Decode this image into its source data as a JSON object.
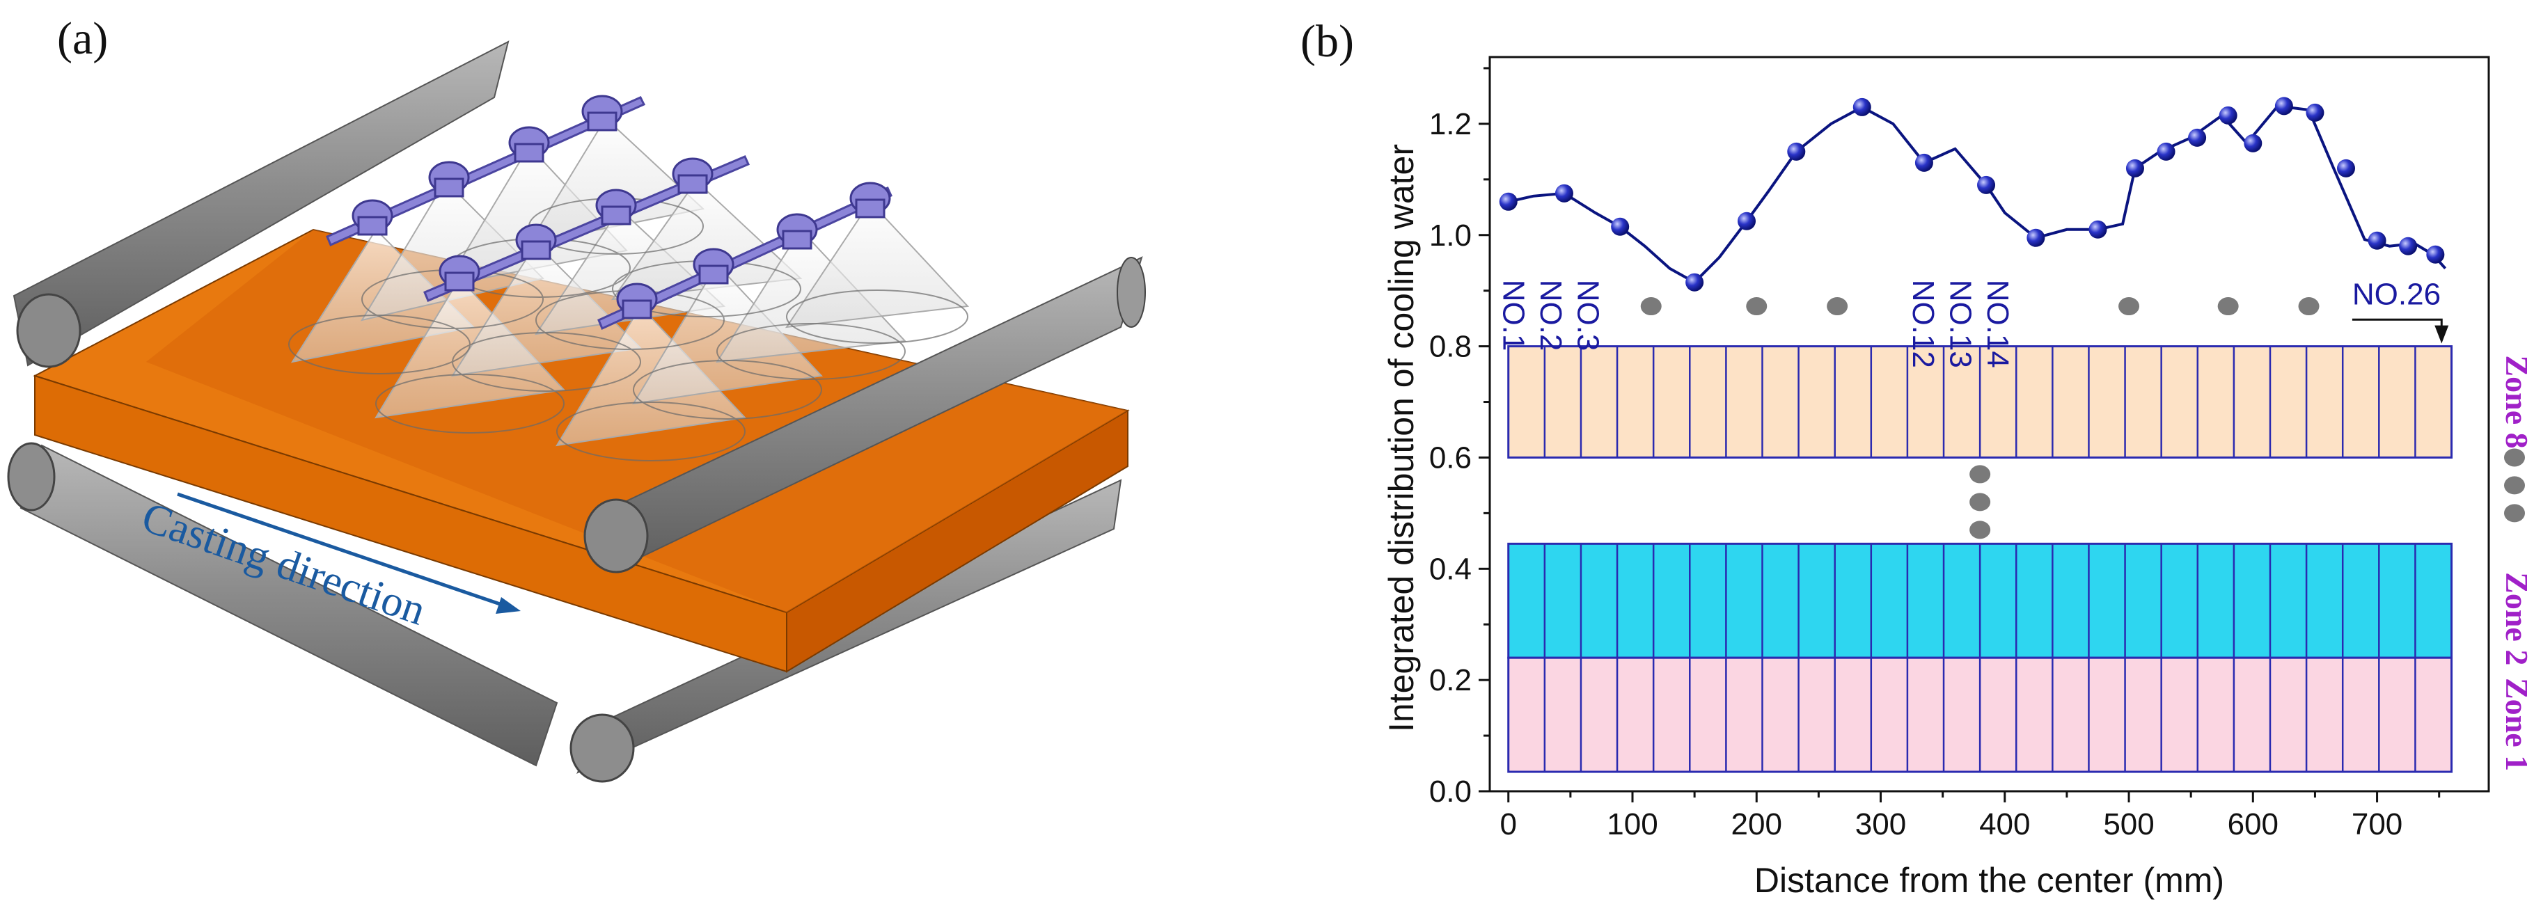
{
  "panel_a": {
    "label": "(a)",
    "casting_direction": "Casting direction"
  },
  "panel_b": {
    "label": "(b)",
    "nozzle_labels": [
      "NO.1",
      "NO.2",
      "NO.3",
      "NO.12",
      "NO.13",
      "NO.14",
      "NO.26"
    ],
    "zones": [
      "Zone 8",
      "Zone 2",
      "Zone 1"
    ]
  },
  "chart_data": {
    "type": "line",
    "title": "",
    "xlabel": "Distance from the center (mm)",
    "ylabel": "Integrated distribution of cooling water",
    "xlim": [
      -15,
      790
    ],
    "ylim": [
      0.0,
      1.32
    ],
    "xticks": [
      0,
      100,
      200,
      300,
      400,
      500,
      600,
      700
    ],
    "yticks": [
      0.0,
      0.2,
      0.4,
      0.6,
      0.8,
      1.0,
      1.2
    ],
    "series": [
      {
        "name": "cooling water",
        "x": [
          0,
          20,
          45,
          70,
          90,
          110,
          130,
          150,
          170,
          192,
          210,
          232,
          260,
          285,
          310,
          335,
          360,
          385,
          400,
          425,
          450,
          475,
          495,
          505,
          525,
          550,
          575,
          595,
          620,
          645,
          665,
          690,
          710,
          730,
          745,
          755
        ],
        "y": [
          1.06,
          1.07,
          1.075,
          1.04,
          1.015,
          0.98,
          0.94,
          0.915,
          0.96,
          1.025,
          1.08,
          1.15,
          1.2,
          1.23,
          1.2,
          1.13,
          1.155,
          1.09,
          1.04,
          0.995,
          1.01,
          1.01,
          1.02,
          1.12,
          1.15,
          1.175,
          1.215,
          1.165,
          1.232,
          1.225,
          1.12,
          0.992,
          0.98,
          0.985,
          0.965,
          0.94
        ],
        "markers_x": [
          0,
          45,
          90,
          150,
          192,
          232,
          285,
          335,
          385,
          425,
          475,
          505,
          530,
          555,
          580,
          600,
          625,
          650,
          675,
          700,
          725,
          747
        ],
        "markers_y": [
          1.06,
          1.075,
          1.015,
          0.915,
          1.025,
          1.15,
          1.23,
          1.13,
          1.09,
          0.995,
          1.01,
          1.12,
          1.15,
          1.175,
          1.215,
          1.165,
          1.232,
          1.22,
          1.12,
          0.99,
          0.98,
          0.965
        ]
      }
    ],
    "zone_bands": [
      {
        "name": "Zone 8",
        "y0": 0.6,
        "y1": 0.8,
        "color": "#fde2c6"
      },
      {
        "name": "Zone 2",
        "y0": 0.24,
        "y1": 0.445,
        "color": "#2ed6f0"
      },
      {
        "name": "Zone 1",
        "y0": 0.035,
        "y1": 0.24,
        "color": "#fbd6e2"
      }
    ],
    "cells": 26,
    "cells_x_range": [
      0,
      760
    ]
  },
  "colors": {
    "slab": "#e87a10",
    "slab_side": "#cc5f00",
    "roller": "#8a8a8a",
    "nozzle": "#8c85d8",
    "line": "#0a1480",
    "direction": "#1a5aa0"
  }
}
